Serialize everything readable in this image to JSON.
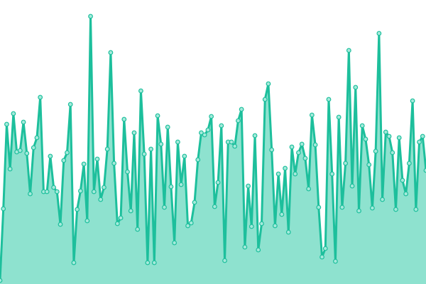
{
  "chart_data": {
    "type": "area",
    "color": "#1dbf9c",
    "fill": "#8ee2cf",
    "marker_fill": "#a4eadb",
    "ylim": [
      0,
      400
    ],
    "values": [
      5,
      106,
      225,
      162,
      240,
      186,
      188,
      228,
      184,
      127,
      192,
      206,
      263,
      130,
      130,
      180,
      136,
      130,
      84,
      174,
      185,
      253,
      30,
      105,
      131,
      169,
      89,
      377,
      130,
      176,
      119,
      136,
      190,
      326,
      170,
      85,
      93,
      232,
      158,
      103,
      213,
      77,
      272,
      183,
      30,
      190,
      30,
      237,
      197,
      108,
      221,
      137,
      58,
      200,
      140,
      180,
      82,
      86,
      115,
      175,
      213,
      210,
      217,
      236,
      109,
      143,
      223,
      33,
      200,
      200,
      194,
      230,
      246,
      52,
      138,
      81,
      209,
      48,
      85,
      260,
      282,
      189,
      82,
      155,
      98,
      163,
      73,
      193,
      155,
      185,
      197,
      177,
      134,
      238,
      196,
      108,
      38,
      50,
      260,
      155,
      32,
      235,
      108,
      170,
      329,
      138,
      277,
      103,
      223,
      204,
      168,
      107,
      187,
      353,
      119,
      214,
      208,
      185,
      105,
      206,
      146,
      127,
      170,
      258,
      105,
      200,
      208,
      160
    ]
  }
}
